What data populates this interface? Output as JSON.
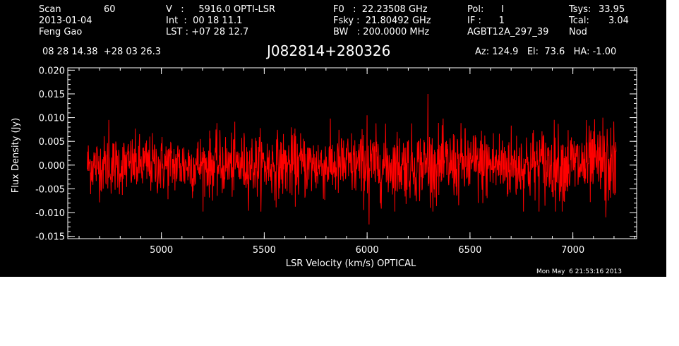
{
  "header": {
    "scan_label": "Scan",
    "scan_value": "60",
    "date": "2013-01-04",
    "observer": "Feng Gao",
    "v_line": "V   :     5916.0 OPTI-LSR",
    "int_line": "Int  :  00 18 11.1",
    "lst_line": "LST : +07 28 12.7",
    "f0_line": "F0   :  22.23508 GHz",
    "fsky_line": "Fsky :  21.80492 GHz",
    "bw_line": "BW   : 200.0000 MHz",
    "pol_line": "Pol:      I",
    "if_line": "IF :      1",
    "project": "AGBT12A_297_39",
    "tsys_label": "Tsys:",
    "tsys_value": "33.95",
    "tcal_label": "Tcal:",
    "tcal_value": "3.04",
    "mode": "Nod",
    "coords": "08 28 14.38  +28 03 26.3",
    "source": "J082814+280326",
    "az_el_ha": "Az: 124.9   El:  73.6   HA: -1.00"
  },
  "footer": {
    "timestamp": "Mon May  6 21:53:16 2013"
  },
  "chart_data": {
    "type": "line",
    "xlabel": "LSR Velocity (km/s) OPTICAL",
    "ylabel": "Flux Density (Jy)",
    "xlim": [
      4545,
      7310
    ],
    "ylim": [
      -0.0155,
      0.0205
    ],
    "x_ticks": [
      5000,
      5500,
      6000,
      6500,
      7000
    ],
    "x_tick_labels": [
      "5000",
      "5500",
      "6000",
      "6500",
      "7000"
    ],
    "y_ticks": [
      -0.015,
      -0.01,
      -0.005,
      0.0,
      0.005,
      0.01,
      0.015,
      0.02
    ],
    "y_tick_labels": [
      "-0.015",
      "-0.010",
      "-0.005",
      "0.000",
      "0.005",
      "0.010",
      "0.015",
      "0.020"
    ],
    "x_minor_step": 100,
    "y_minor_step": 0.001,
    "grid": false,
    "series_color": "#ff0000",
    "axes_color": "#ffffff",
    "background": "#000000",
    "series": [
      {
        "x_start": 4640,
        "x_end": 7210,
        "n_points": 1600,
        "mean": 0.0,
        "rms": 0.0033,
        "spikes": [
          {
            "x": 6010,
            "y": -0.0125
          },
          {
            "x": 6295,
            "y": 0.015
          },
          {
            "x": 6000,
            "y": 0.0105
          },
          {
            "x": 7160,
            "y": -0.011
          },
          {
            "x": 4745,
            "y": 0.0095
          },
          {
            "x": 7145,
            "y": 0.01
          }
        ]
      }
    ]
  }
}
